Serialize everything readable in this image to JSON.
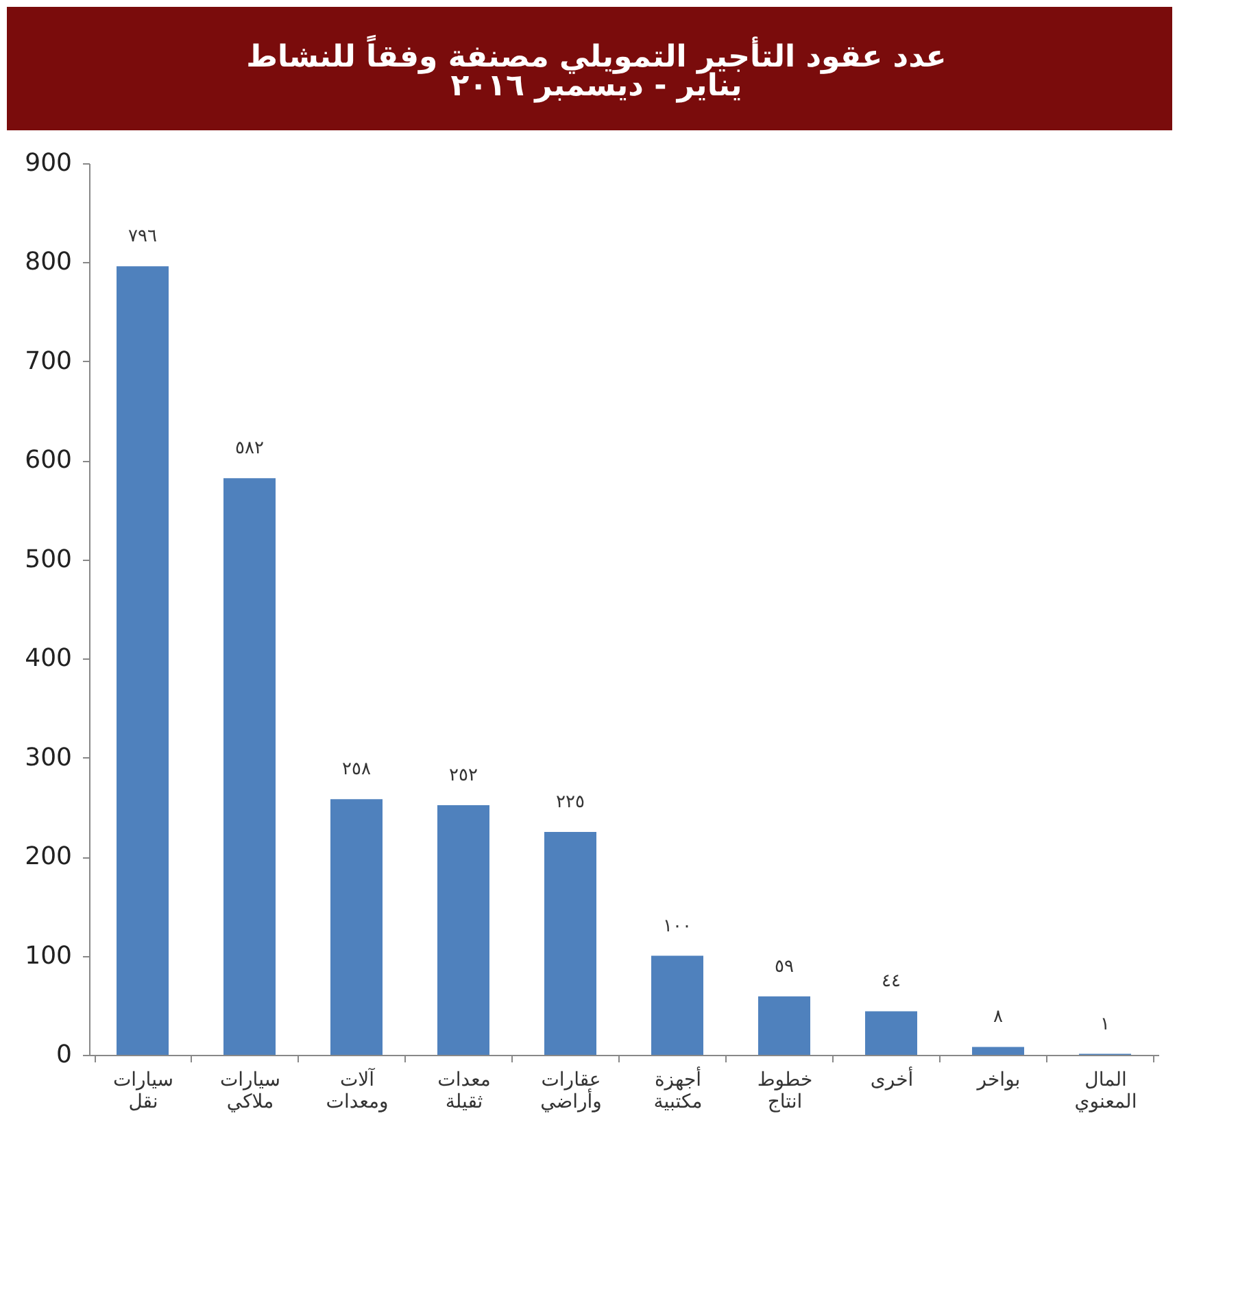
{
  "chart_data": {
    "type": "bar",
    "title": "عدد عقود التأجير التمويلي مصنفة وفقاً للنشاط",
    "subtitle": "يناير - ديسمبر ٢٠١٦",
    "categories": [
      "سيارات نقل",
      "سيارات ملاكي",
      "آلات ومعدات",
      "معدات ثقيلة",
      "عقارات وأراضي",
      "أجهزة مكتبية",
      "خطوط انتاج",
      "أخرى",
      "بواخر",
      "المال المعنوي"
    ],
    "values": [
      796,
      582,
      258,
      252,
      225,
      100,
      59,
      44,
      8,
      1
    ],
    "value_labels": [
      "٧٩٦",
      "٥٨٢",
      "٢٥٨",
      "٢٥٢",
      "٢٢٥",
      "١٠٠",
      "٥٩",
      "٤٤",
      "٨",
      "١"
    ],
    "color": "#4f81bd",
    "ylim": [
      0,
      900
    ],
    "yticks": [
      0,
      100,
      200,
      300,
      400,
      500,
      600,
      700,
      800,
      900
    ],
    "grid": false
  }
}
